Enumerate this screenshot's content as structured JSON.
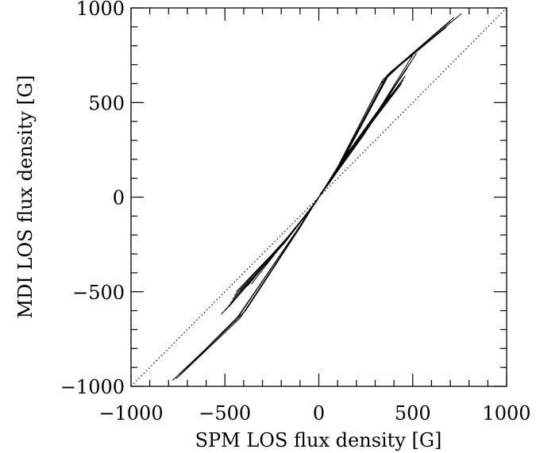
{
  "chart_data": {
    "type": "line",
    "xlabel": "SPM LOS flux density [G]",
    "ylabel": "MDI LOS flux density [G]",
    "xlim": [
      -1000,
      1000
    ],
    "ylim": [
      -1000,
      1000
    ],
    "xticks": [
      -1000,
      -500,
      0,
      500,
      1000
    ],
    "yticks": [
      -1000,
      -500,
      0,
      500,
      1000
    ],
    "xtick_labels": [
      "−1000",
      "−500",
      "0",
      "500",
      "1000"
    ],
    "ytick_labels": [
      "−1000",
      "−500",
      "0",
      "500",
      "1000"
    ],
    "minor_tick_step": 100,
    "grid": false,
    "reference_line": {
      "style": "dotted",
      "x": [
        -1000,
        1000
      ],
      "y": [
        -1000,
        1000
      ]
    },
    "series": [
      {
        "x": [
          -780,
          -440,
          -120,
          -40,
          -10,
          0,
          10,
          40,
          120,
          380,
          760
        ],
        "y": [
          -970,
          -650,
          -180,
          -60,
          -20,
          0,
          20,
          60,
          180,
          660,
          970
        ]
      },
      {
        "x": [
          -760,
          -420,
          -110,
          -35,
          0,
          35,
          110,
          360,
          700
        ],
        "y": [
          -960,
          -640,
          -170,
          -55,
          0,
          55,
          170,
          640,
          930
        ]
      },
      {
        "x": [
          -740,
          -430,
          -115,
          -40,
          0,
          40,
          115,
          370,
          720
        ],
        "y": [
          -940,
          -630,
          -175,
          -58,
          0,
          58,
          175,
          650,
          950
        ]
      },
      {
        "x": [
          -700,
          -400,
          -105,
          -35,
          0,
          35,
          105,
          340,
          680
        ],
        "y": [
          -900,
          -610,
          -165,
          -50,
          0,
          50,
          165,
          620,
          900
        ]
      },
      {
        "x": [
          -680,
          -390,
          -100,
          -30,
          0,
          30,
          100,
          330,
          500
        ],
        "y": [
          -880,
          -600,
          -160,
          -48,
          0,
          48,
          160,
          600,
          760
        ]
      },
      {
        "x": [
          -480,
          -200,
          -60,
          0,
          60,
          210,
          480
        ],
        "y": [
          -580,
          -260,
          -80,
          0,
          80,
          300,
          700
        ]
      },
      {
        "x": [
          -470,
          -190,
          -55,
          0,
          55,
          200,
          470
        ],
        "y": [
          -560,
          -250,
          -75,
          0,
          75,
          290,
          680
        ]
      },
      {
        "x": [
          -460,
          -180,
          -50,
          0,
          50,
          190,
          460
        ],
        "y": [
          -540,
          -240,
          -70,
          0,
          70,
          280,
          640
        ]
      },
      {
        "x": [
          -450,
          -185,
          -52,
          0,
          52,
          185,
          450
        ],
        "y": [
          -520,
          -235,
          -72,
          0,
          72,
          270,
          620
        ]
      },
      {
        "x": [
          -440,
          -175,
          -48,
          0,
          48,
          180,
          440
        ],
        "y": [
          -500,
          -225,
          -68,
          0,
          68,
          260,
          600
        ]
      },
      {
        "x": [
          -420,
          -170,
          -45,
          0,
          45,
          175,
          420
        ],
        "y": [
          -490,
          -215,
          -65,
          0,
          65,
          250,
          580
        ]
      },
      {
        "x": [
          -400,
          -165,
          -42,
          0,
          42,
          170,
          400
        ],
        "y": [
          -480,
          -210,
          -62,
          0,
          62,
          245,
          560
        ]
      },
      {
        "x": [
          -380,
          -160,
          -40,
          0,
          40,
          160,
          380
        ],
        "y": [
          -470,
          -205,
          -60,
          0,
          60,
          240,
          540
        ]
      },
      {
        "x": [
          -360,
          -150,
          -38,
          0,
          38,
          150,
          360
        ],
        "y": [
          -460,
          -195,
          -58,
          0,
          58,
          230,
          520
        ]
      },
      {
        "x": [
          -500,
          -220,
          -65,
          0,
          65,
          230,
          500
        ],
        "y": [
          -600,
          -280,
          -90,
          0,
          90,
          320,
          750
        ]
      },
      {
        "x": [
          -520,
          -230,
          -70,
          0,
          70,
          240,
          520
        ],
        "y": [
          -620,
          -295,
          -95,
          0,
          95,
          330,
          760
        ]
      }
    ]
  }
}
